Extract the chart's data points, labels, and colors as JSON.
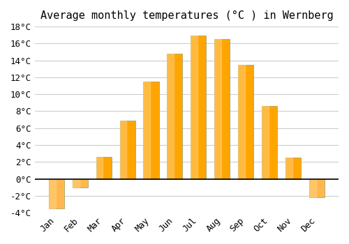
{
  "title": "Average monthly temperatures (°C ) in Wernberg",
  "months": [
    "Jan",
    "Feb",
    "Mar",
    "Apr",
    "May",
    "Jun",
    "Jul",
    "Aug",
    "Sep",
    "Oct",
    "Nov",
    "Dec"
  ],
  "values": [
    -3.5,
    -1.0,
    2.6,
    6.9,
    11.5,
    14.8,
    16.9,
    16.5,
    13.5,
    8.6,
    2.5,
    -2.2
  ],
  "bar_color_warm": "#FFA500",
  "bar_color_cold": "#FFB84D",
  "bar_edge_color": "#999966",
  "ylim": [
    -4,
    18
  ],
  "yticks": [
    -4,
    -2,
    0,
    2,
    4,
    6,
    8,
    10,
    12,
    14,
    16,
    18
  ],
  "ytick_labels": [
    "-4°C",
    "-2°C",
    "0°C",
    "2°C",
    "4°C",
    "6°C",
    "8°C",
    "10°C",
    "12°C",
    "14°C",
    "16°C",
    "18°C"
  ],
  "background_color": "#ffffff",
  "grid_color": "#cccccc",
  "title_fontsize": 11,
  "tick_fontsize": 9,
  "bar_width": 0.65
}
